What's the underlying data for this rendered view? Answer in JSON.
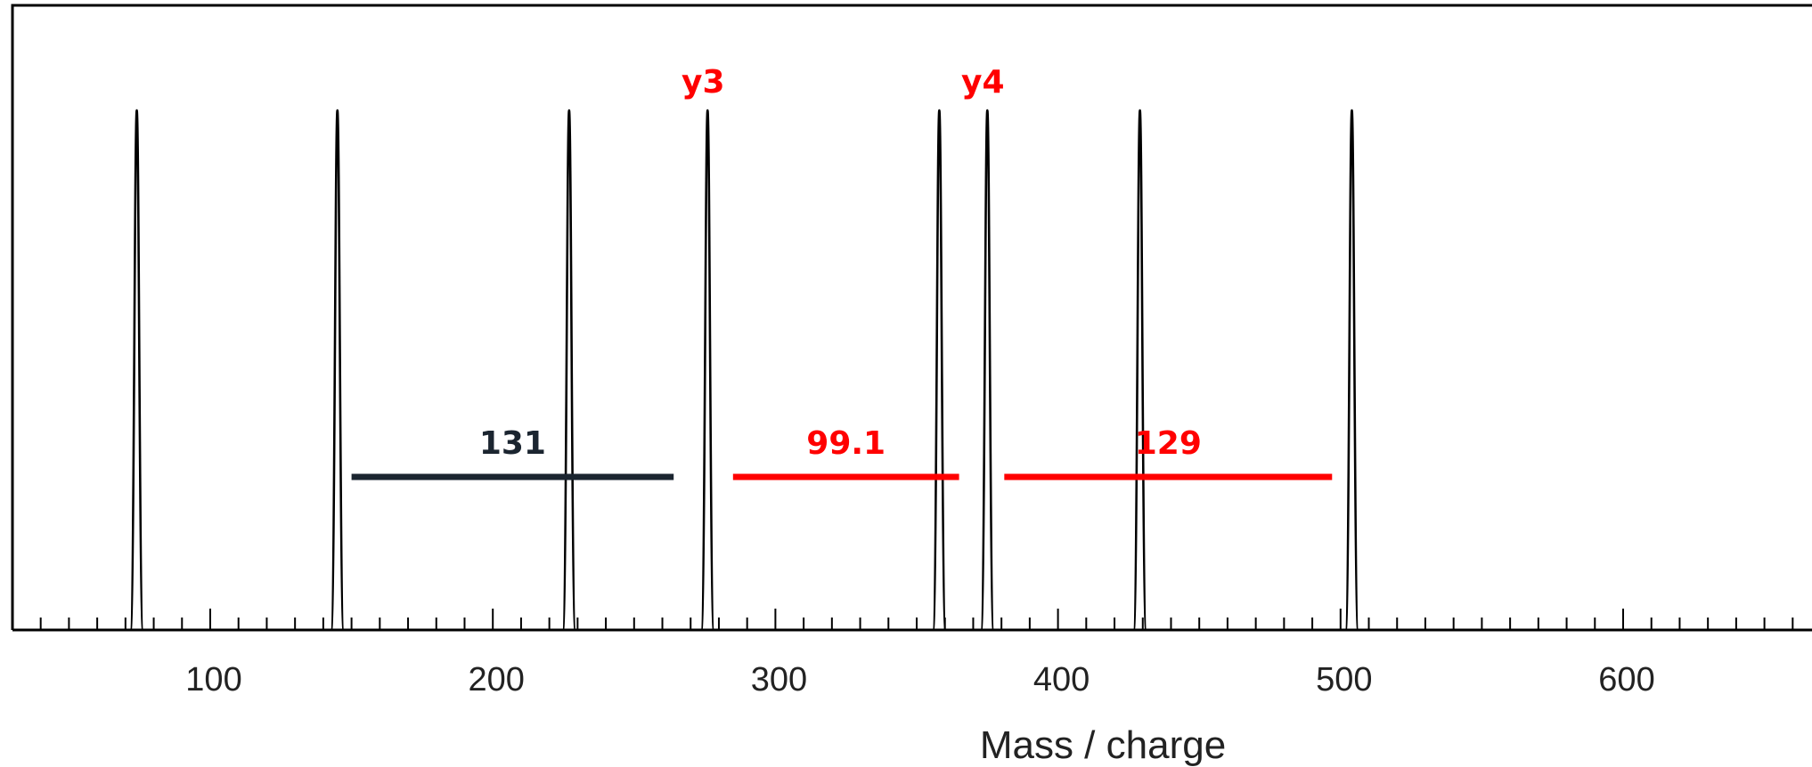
{
  "chart_data": {
    "type": "line",
    "title": "",
    "xlabel": "Mass / charge",
    "ylabel": "",
    "xlim": [
      30,
      660
    ],
    "ylim": [
      0,
      100
    ],
    "x_ticks": [
      100,
      200,
      300,
      400,
      500,
      600
    ],
    "x_minor_tick_step": 10,
    "grid": false,
    "legend": "none",
    "peaks": [
      {
        "mz": 74,
        "intensity": 100,
        "label": ""
      },
      {
        "mz": 145,
        "intensity": 100,
        "label": ""
      },
      {
        "mz": 227,
        "intensity": 100,
        "label": ""
      },
      {
        "mz": 276,
        "intensity": 100,
        "label": "y3"
      },
      {
        "mz": 358,
        "intensity": 100,
        "label": ""
      },
      {
        "mz": 375,
        "intensity": 100,
        "label": "y4"
      },
      {
        "mz": 429,
        "intensity": 100,
        "label": ""
      },
      {
        "mz": 504,
        "intensity": 100,
        "label": ""
      }
    ],
    "annotations": [
      {
        "label": "131",
        "x_start": 150,
        "x_end": 264,
        "level": 30,
        "color": "#1b2530"
      },
      {
        "label": "99.1",
        "x_start": 285,
        "x_end": 365,
        "level": 30,
        "color": "#ff0000"
      },
      {
        "label": "129",
        "x_start": 381,
        "x_end": 497,
        "level": 30,
        "color": "#ff0000"
      }
    ],
    "colors": {
      "peak": "#000000",
      "label_highlight": "#ff0000",
      "axis": "#000000"
    }
  }
}
